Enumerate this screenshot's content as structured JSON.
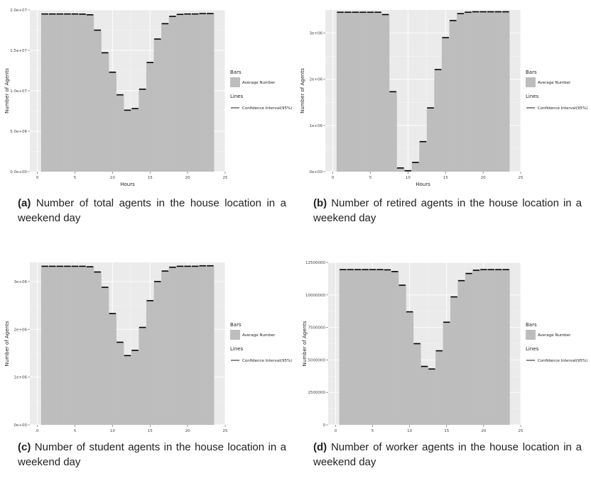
{
  "chart_data": [
    {
      "type": "bar",
      "caption_label": "(a)",
      "caption": "Number of total agents in the house location in a weekend day",
      "xlabel": "Hours",
      "ylabel": "Number of Agents",
      "x": [
        1,
        2,
        3,
        4,
        5,
        6,
        7,
        8,
        9,
        10,
        11,
        12,
        13,
        14,
        15,
        16,
        17,
        18,
        19,
        20,
        21,
        22,
        23
      ],
      "values": [
        19500000,
        19500000,
        19500000,
        19500000,
        19500000,
        19480000,
        19400000,
        17500000,
        14700000,
        12300000,
        9500000,
        7600000,
        7800000,
        10200000,
        13500000,
        16400000,
        18300000,
        19200000,
        19450000,
        19500000,
        19500000,
        19550000,
        19550000
      ],
      "ylim": [
        0,
        20000000
      ],
      "xlim": [
        -1,
        25
      ],
      "yticks": [
        0,
        5000000,
        10000000,
        15000000,
        20000000
      ],
      "ytick_labels": [
        "0.0e+00",
        "5.0e+06",
        "1.0e+07",
        "1.5e+07",
        "2.0e+07"
      ],
      "xticks": [
        0,
        5,
        10,
        15,
        20,
        25
      ],
      "xtick_labels": [
        "0",
        "5",
        "10",
        "15",
        "20",
        "25"
      ],
      "legend": {
        "bars_title": "Bars",
        "bars_label": "Average Number",
        "lines_title": "Lines",
        "lines_label": "Confidence Interval(95%)"
      },
      "grid": true,
      "legend_position": "right",
      "bar_color": "#bdbdbd",
      "panel_bg": "#ebebeb"
    },
    {
      "type": "bar",
      "caption_label": "(b)",
      "caption": "Number of retired agents in the house location in a weekend day",
      "xlabel": "Hours",
      "ylabel": "Number of Agents",
      "x": [
        1,
        2,
        3,
        4,
        5,
        6,
        7,
        8,
        9,
        10,
        11,
        12,
        13,
        14,
        15,
        16,
        17,
        18,
        19,
        20,
        21,
        22,
        23
      ],
      "values": [
        3450000,
        3450000,
        3450000,
        3450000,
        3450000,
        3450000,
        3400000,
        1730000,
        80000,
        20000,
        200000,
        650000,
        1380000,
        2210000,
        2900000,
        3270000,
        3420000,
        3450000,
        3460000,
        3460000,
        3460000,
        3460000,
        3460000
      ],
      "ylim": [
        0,
        3500000
      ],
      "xlim": [
        -1,
        25
      ],
      "yticks": [
        0,
        1000000,
        2000000,
        3000000
      ],
      "ytick_labels": [
        "0e+00",
        "1e+06",
        "2e+06",
        "3e+06"
      ],
      "xticks": [
        0,
        5,
        10,
        15,
        20,
        25
      ],
      "xtick_labels": [
        "0",
        "5",
        "10",
        "15",
        "20",
        "25"
      ],
      "legend": {
        "bars_title": "Bars",
        "bars_label": "Average Number",
        "lines_title": "Lines",
        "lines_label": "Confidence Interval(95%)"
      },
      "grid": true,
      "legend_position": "right",
      "bar_color": "#bdbdbd",
      "panel_bg": "#ebebeb"
    },
    {
      "type": "bar",
      "caption_label": "(c)",
      "caption": "Number of student agents in the house location in a weekend day",
      "xlabel": "Hours",
      "ylabel": "Number of Agents",
      "x": [
        1,
        2,
        3,
        4,
        5,
        6,
        7,
        8,
        9,
        10,
        11,
        12,
        13,
        14,
        15,
        16,
        17,
        18,
        19,
        20,
        21,
        22,
        23
      ],
      "values": [
        3320000,
        3320000,
        3320000,
        3320000,
        3320000,
        3320000,
        3310000,
        3200000,
        2880000,
        2330000,
        1730000,
        1450000,
        1560000,
        2040000,
        2600000,
        3000000,
        3220000,
        3300000,
        3320000,
        3320000,
        3320000,
        3330000,
        3330000
      ],
      "ylim": [
        0,
        3400000
      ],
      "xlim": [
        -1,
        25
      ],
      "yticks": [
        0,
        1000000,
        2000000,
        3000000
      ],
      "ytick_labels": [
        "0e+00",
        "1e+06",
        "2e+06",
        "3e+06"
      ],
      "xticks": [
        0,
        5,
        10,
        15,
        20,
        25
      ],
      "xtick_labels": [
        "0",
        "5",
        "10",
        "15",
        "20",
        "25"
      ],
      "legend": {
        "bars_title": "Bars",
        "bars_label": "Average Number",
        "lines_title": "Lines",
        "lines_label": "Confidence Interval(95%)"
      },
      "grid": true,
      "legend_position": "right",
      "bar_color": "#bdbdbd",
      "panel_bg": "#ebebeb"
    },
    {
      "type": "bar",
      "caption_label": "(d)",
      "caption": "Number of worker agents in the house location in a weekend day",
      "xlabel": "Hours",
      "ylabel": "Number of Agents",
      "x": [
        1,
        2,
        3,
        4,
        5,
        6,
        7,
        8,
        9,
        10,
        11,
        12,
        13,
        14,
        15,
        16,
        17,
        18,
        19,
        20,
        21,
        22,
        23
      ],
      "values": [
        11950000,
        11950000,
        11950000,
        11950000,
        11950000,
        11950000,
        11930000,
        11800000,
        10750000,
        8700000,
        6250000,
        4500000,
        4300000,
        5700000,
        7900000,
        9850000,
        11100000,
        11650000,
        11900000,
        11950000,
        11950000,
        11950000,
        11950000
      ],
      "ylim": [
        0,
        12500000
      ],
      "xlim": [
        -1,
        25
      ],
      "yticks": [
        0,
        2500000,
        5000000,
        7500000,
        10000000,
        12500000
      ],
      "ytick_labels": [
        "0",
        "2500000",
        "5000000",
        "7500000",
        "10000000",
        "12500000"
      ],
      "xticks": [
        0,
        5,
        10,
        15,
        20,
        25
      ],
      "xtick_labels": [
        "0",
        "5",
        "10",
        "15",
        "20",
        "25"
      ],
      "legend": {
        "bars_title": "Bars",
        "bars_label": "Average Number",
        "lines_title": "Lines",
        "lines_label": "Confidence Interval(95%)"
      },
      "grid": true,
      "legend_position": "right",
      "bar_color": "#bdbdbd",
      "panel_bg": "#ebebeb"
    }
  ]
}
